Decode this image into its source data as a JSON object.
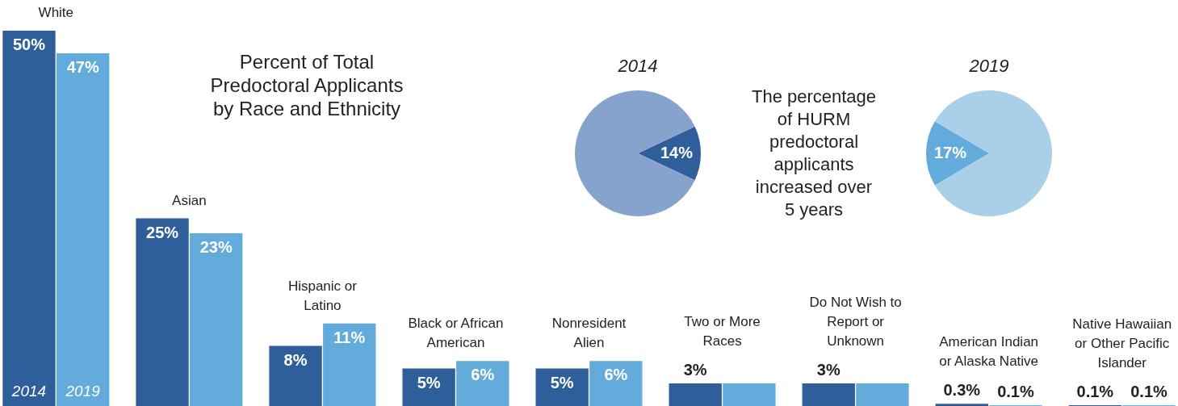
{
  "chart_data": [
    {
      "type": "bar",
      "title": "Percent of Total Predoctoral Applicants by Race and Ethnicity",
      "categories": [
        "White",
        "Asian",
        "Hispanic or Latino",
        "Black or African American",
        "Nonresident Alien",
        "Two or More Races",
        "Do Not Wish to Report or Unknown",
        "American Indian or Alaska Native",
        "Native Hawaiian or Other Pacific Islander"
      ],
      "series": [
        {
          "name": "2014",
          "color": "#2e5f9b",
          "values": [
            50,
            25,
            8,
            5,
            5,
            3,
            3,
            0.3,
            0.1
          ],
          "value_labels": [
            "50%",
            "25%",
            "8%",
            "5%",
            "5%",
            "3%",
            "3%",
            "0.3%",
            "0.1%"
          ]
        },
        {
          "name": "2019",
          "color": "#62abda",
          "values": [
            47,
            23,
            11,
            6,
            6,
            3,
            3,
            0.1,
            0.1
          ],
          "value_labels": [
            "47%",
            "23%",
            "11%",
            "6%",
            "6%",
            null,
            null,
            "0.1%",
            "0.1%"
          ]
        }
      ]
    },
    {
      "type": "pie",
      "title": "2014",
      "categories": [
        null,
        null
      ],
      "values": [
        14,
        86
      ],
      "colors": [
        "#2e5f9b",
        "#86a3cd"
      ],
      "value_labels": [
        "14%",
        null
      ],
      "annotations": [
        "The percentage of HURM predoctoral applicants increased over 5 years"
      ]
    },
    {
      "type": "pie",
      "title": "2019",
      "categories": [
        null,
        null
      ],
      "values": [
        17,
        83
      ],
      "colors": [
        "#62abda",
        "#a9cfe9"
      ],
      "value_labels": [
        "17%",
        null
      ]
    }
  ]
}
